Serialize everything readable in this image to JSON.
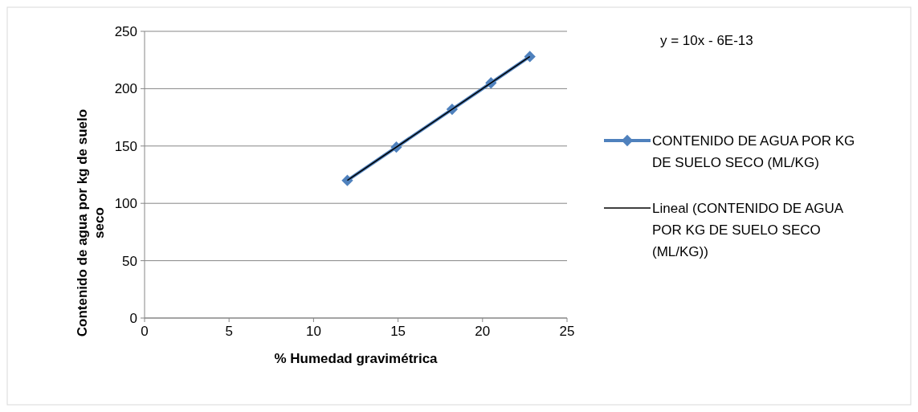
{
  "chart_data": {
    "type": "line",
    "xlabel": "% Humedad gravimétrica",
    "ylabel": "Contenido de agua por kg de suelo seco",
    "xlim": [
      0,
      25
    ],
    "xticks": [
      0,
      5,
      10,
      15,
      20,
      25
    ],
    "ylim": [
      0,
      250
    ],
    "yticks": [
      0,
      50,
      100,
      150,
      200,
      250
    ],
    "grid": "y",
    "legend": "right",
    "marker": "diamond",
    "annotations": [
      "y = 10x - 6E-13"
    ],
    "series": [
      {
        "name": "CONTENIDO DE AGUA POR KG DE SUELO SECO (ML/KG)",
        "color": "#4f81bd",
        "x": [
          12,
          14.9,
          18.2,
          20.5,
          22.8
        ],
        "values": [
          120,
          149,
          182,
          205,
          228
        ]
      },
      {
        "name": "Lineal (CONTENIDO DE AGUA POR KG DE SUELO SECO (ML/KG))",
        "color": "#000000",
        "marker": "none",
        "x": [
          12,
          22.8
        ],
        "values": [
          120,
          228
        ]
      }
    ]
  }
}
